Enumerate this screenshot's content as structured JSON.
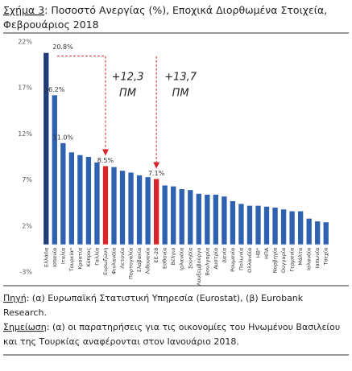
{
  "caption": {
    "label": "Σχήμα 3",
    "title": ": Ποσοστό Ανεργίας (%), Εποχικά Διορθωμένα Στοιχεία, Φεβρουάριος 2018"
  },
  "chart_data": {
    "type": "bar",
    "categories": [
      "Ελλάδα",
      "Ισπανία",
      "Ιταλία",
      "Τουρκία*",
      "Κροατία",
      "Κύπρος",
      "Γαλλία",
      "Ευρωζώνη",
      "Φινλανδία",
      "Λετονία",
      "Πορτογαλία",
      "Σλοβακία",
      "Λιθουανία",
      "ΕΕ-28",
      "Εσθονία",
      "Βέλγιο",
      "Ιρλανδία",
      "Σουηδία",
      "Λουξεμβούργο",
      "Βουλγαρία",
      "Αυστρία",
      "Δανία",
      "Ρουμανία",
      "Πολωνία",
      "Ολλανδία",
      "ΗΒ*",
      "ΗΠΑ",
      "Νορβηγία",
      "Ουγγαρία",
      "Γερμανία",
      "Μάλτα",
      "Ισλανδία",
      "Ιαπωνία",
      "Τσεχία"
    ],
    "values": [
      20.8,
      16.2,
      11.0,
      10.0,
      9.7,
      9.5,
      8.9,
      8.5,
      8.4,
      8.0,
      7.8,
      7.5,
      7.3,
      7.1,
      6.4,
      6.3,
      6.0,
      5.9,
      5.5,
      5.4,
      5.4,
      5.2,
      4.7,
      4.4,
      4.2,
      4.2,
      4.1,
      4.0,
      3.8,
      3.6,
      3.6,
      2.8,
      2.5,
      2.4
    ],
    "value_labels": [
      "20.8%",
      "16.2%",
      "11.0%",
      null,
      null,
      null,
      null,
      "8.5%",
      null,
      null,
      null,
      null,
      null,
      "7.1%",
      null,
      null,
      null,
      null,
      null,
      null,
      null,
      null,
      null,
      null,
      null,
      null,
      null,
      null,
      null,
      null,
      null,
      null,
      null,
      null
    ],
    "colors": [
      "#1f3d7a",
      "#2e62b0",
      "#2e62b0",
      "#2e62b0",
      "#2e62b0",
      "#2e62b0",
      "#2e62b0",
      "#d8262a",
      "#2e62b0",
      "#2e62b0",
      "#2e62b0",
      "#2e62b0",
      "#2e62b0",
      "#d8262a",
      "#2e62b0",
      "#2e62b0",
      "#2e62b0",
      "#2e62b0",
      "#2e62b0",
      "#2e62b0",
      "#2e62b0",
      "#2e62b0",
      "#2e62b0",
      "#2e62b0",
      "#2e62b0",
      "#2e62b0",
      "#2e62b0",
      "#2e62b0",
      "#2e62b0",
      "#2e62b0",
      "#2e62b0",
      "#2e62b0",
      "#2e62b0",
      "#2e62b0"
    ],
    "ylim": [
      -3,
      22
    ],
    "yticks": [
      {
        "value": -3,
        "label": "-3%"
      },
      {
        "value": 2,
        "label": "2%"
      },
      {
        "value": 7,
        "label": "7%"
      },
      {
        "value": 12,
        "label": "12%"
      },
      {
        "value": 17,
        "label": "17%"
      },
      {
        "value": 22,
        "label": "22%"
      }
    ],
    "grid": false,
    "annotations": [
      [
        "+12,3",
        "ΠΜ"
      ],
      [
        "+13,7",
        "ΠΜ"
      ]
    ]
  },
  "source": {
    "label": "Πηγή",
    "lines": [
      ": (α) Ευρωπαϊκή Στατιστική Υπηρεσία (Eurostat), (β) Eurobank",
      "Research."
    ]
  },
  "note": {
    "label": "Σημείωση",
    "lines": [
      ": (α) οι παρατηρήσεις για τις οικονομίες του Ηνωμένου Βασιλείου",
      "και της Τουρκίας αναφέρονται στον Ιανουάριο 2018."
    ]
  }
}
